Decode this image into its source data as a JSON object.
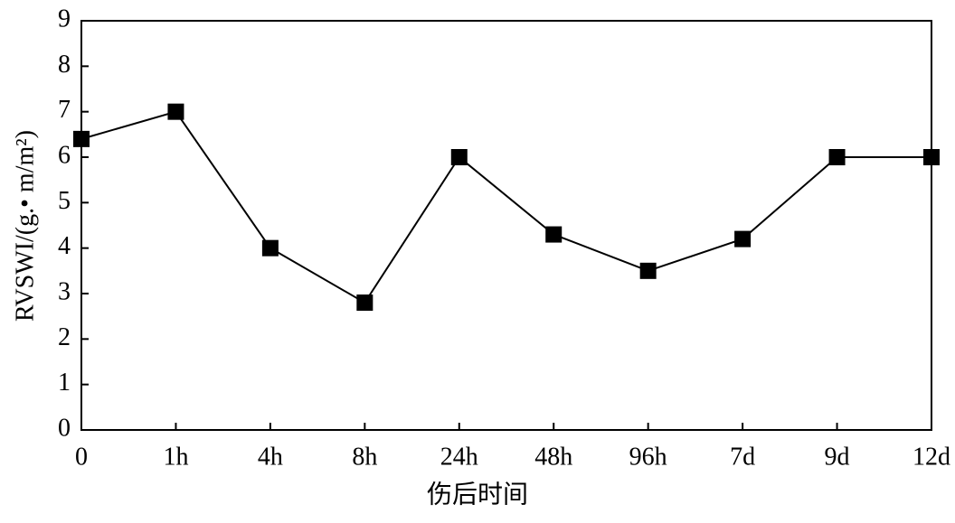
{
  "chart_data": {
    "type": "line",
    "x_label": "伤后时间",
    "y_label": "RVSWI/(g.• m/m²)",
    "categories": [
      "0",
      "1h",
      "4h",
      "8h",
      "24h",
      "48h",
      "96h",
      "7d",
      "9d",
      "12d"
    ],
    "values": [
      6.4,
      7.0,
      4.0,
      2.8,
      6.0,
      4.3,
      3.5,
      4.2,
      6.0,
      6.0
    ],
    "color": "#000000",
    "ylim": [
      0,
      9
    ],
    "yticks": [
      0,
      1,
      2,
      3,
      4,
      5,
      6,
      7,
      8,
      9
    ],
    "grid": false
  }
}
